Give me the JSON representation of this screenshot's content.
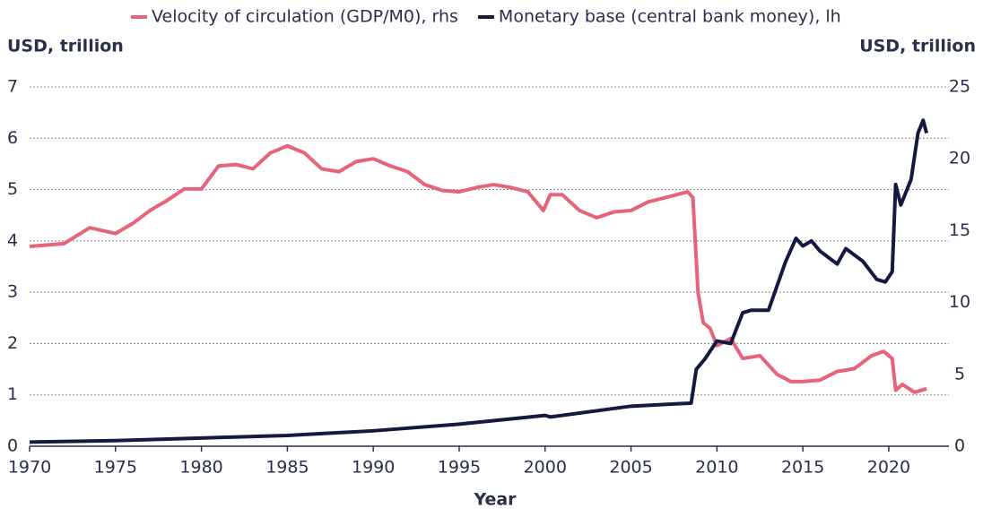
{
  "chart_data": {
    "type": "line",
    "y_label": "USD, trillion",
    "y2_label": "USD, trillion",
    "x_label": "Year",
    "xlim": [
      1970,
      2023.5
    ],
    "xticks": [
      1970,
      1975,
      1980,
      1985,
      1990,
      1995,
      2000,
      2005,
      2010,
      2015,
      2020
    ],
    "ylim": [
      0,
      7
    ],
    "yticks": [
      0,
      1,
      2,
      3,
      4,
      5,
      6,
      7
    ],
    "y2lim": [
      0,
      25
    ],
    "y2ticks": [
      0,
      5,
      10,
      15,
      20,
      25
    ],
    "grid": true,
    "legend": "top",
    "series": [
      {
        "name": "Velocity of circulation (GDP/M0), rhs",
        "color": "#e8637a",
        "axis": "y2",
        "x": [
          1970,
          1972,
          1973.5,
          1975,
          1976,
          1977,
          1978,
          1979,
          1980,
          1981,
          1982,
          1983,
          1984,
          1985,
          1986,
          1987,
          1988,
          1989,
          1990,
          1991,
          1992,
          1993,
          1994,
          1995,
          1996,
          1997,
          1998,
          1999,
          1999.9,
          2000.3,
          2001,
          2002,
          2003,
          2004,
          2005,
          2006,
          2007,
          2008.3,
          2008.6,
          2008.9,
          2009.2,
          2009.6,
          2010,
          2010.8,
          2011.5,
          2012.5,
          2013.5,
          2014.3,
          2015,
          2016,
          2017,
          2018,
          2019,
          2019.7,
          2020.2,
          2020.4,
          2020.8,
          2021.5,
          2022.2
        ],
        "values": [
          13.9,
          14.1,
          15.2,
          14.8,
          15.5,
          16.4,
          17.1,
          17.9,
          17.9,
          19.5,
          19.6,
          19.3,
          20.4,
          20.9,
          20.4,
          19.3,
          19.1,
          19.8,
          20.0,
          19.5,
          19.1,
          18.2,
          17.8,
          17.7,
          18.0,
          18.2,
          18.0,
          17.7,
          16.4,
          17.5,
          17.5,
          16.4,
          15.9,
          16.3,
          16.4,
          17.0,
          17.3,
          17.7,
          17.3,
          10.7,
          8.6,
          8.2,
          7.0,
          7.5,
          6.1,
          6.3,
          5.0,
          4.5,
          4.5,
          4.6,
          5.2,
          5.4,
          6.3,
          6.6,
          6.1,
          3.9,
          4.3,
          3.75,
          4.0
        ]
      },
      {
        "name": "Monetary base (central bank money), lh",
        "color": "#14193f",
        "axis": "y",
        "x": [
          1970,
          1975,
          1980,
          1985,
          1990,
          1995,
          2000,
          2000.3,
          2005,
          2008.5,
          2008.8,
          2009.3,
          2010,
          2010.8,
          2011.5,
          2012,
          2013,
          2014,
          2014.6,
          2015,
          2015.5,
          2016,
          2017,
          2017.5,
          2018.5,
          2019.3,
          2019.8,
          2020.2,
          2020.4,
          2020.7,
          2021.3,
          2021.7,
          2022,
          2022.2
        ],
        "values": [
          0.08,
          0.11,
          0.16,
          0.21,
          0.3,
          0.43,
          0.6,
          0.57,
          0.78,
          0.84,
          1.5,
          1.7,
          2.05,
          2.0,
          2.6,
          2.65,
          2.65,
          3.6,
          4.05,
          3.9,
          4.0,
          3.8,
          3.55,
          3.85,
          3.6,
          3.25,
          3.2,
          3.4,
          5.1,
          4.7,
          5.2,
          6.1,
          6.35,
          6.1
        ]
      }
    ]
  }
}
